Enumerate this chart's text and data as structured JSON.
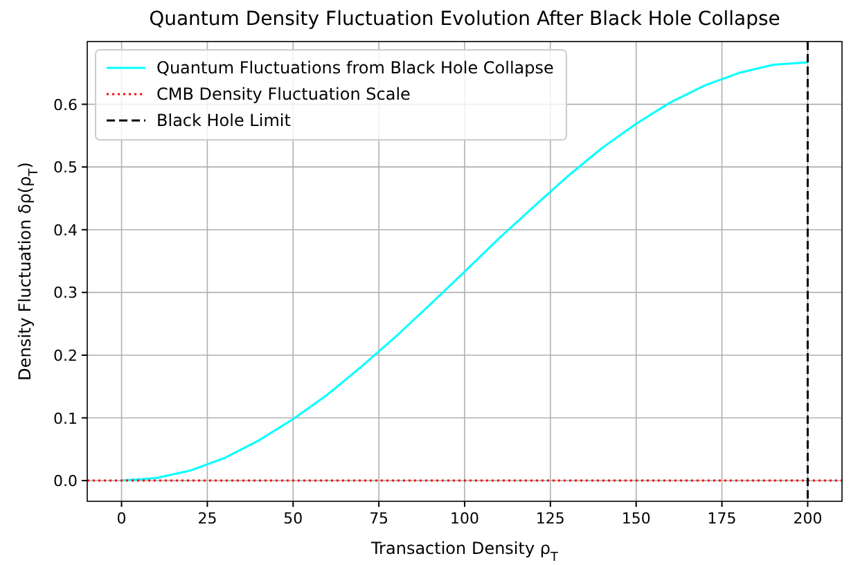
{
  "chart_data": {
    "type": "line",
    "title": "Quantum Density Fluctuation Evolution After Black Hole Collapse",
    "xlabel": "Transaction Density ρ$_{T}$",
    "ylabel": "Density Fluctuation δρ(ρ$_{T}$)",
    "x": [
      0,
      10,
      20,
      30,
      40,
      50,
      60,
      70,
      80,
      90,
      100,
      110,
      120,
      130,
      140,
      150,
      160,
      170,
      180,
      190,
      200
    ],
    "series": [
      {
        "name": "Quantum Fluctuations from Black Hole Collapse",
        "color": "#00ffff",
        "values": [
          0,
          0.004,
          0.016,
          0.036,
          0.064,
          0.098,
          0.137,
          0.182,
          0.23,
          0.281,
          0.333,
          0.386,
          0.436,
          0.485,
          0.53,
          0.569,
          0.603,
          0.63,
          0.65,
          0.663,
          0.667
        ]
      }
    ],
    "ref_lines": [
      {
        "axis": "y",
        "value": 0,
        "label": "CMB Density Fluctuation Scale",
        "color": "#ff0000",
        "line_style": "dotted"
      },
      {
        "axis": "x",
        "value": 200,
        "label": "Black Hole Limit",
        "color": "#000000",
        "line_style": "dashed"
      }
    ],
    "xlim": [
      -10,
      210
    ],
    "xticks": [
      0,
      25,
      50,
      75,
      100,
      125,
      150,
      175,
      200
    ],
    "ylim": [
      -0.033,
      0.7
    ],
    "yticks": [
      {
        "value": 0,
        "label": "0.0"
      },
      0.1,
      0.2,
      0.3,
      0.4,
      0.5,
      0.6
    ],
    "grid": true,
    "legend": "top left",
    "marker": "none",
    "line_style": "solid"
  }
}
